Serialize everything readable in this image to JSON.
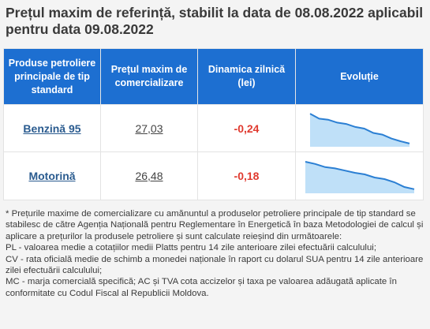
{
  "title": "Prețul maxim de referință, stabilit la data de 08.08.2022 aplicabil pentru data 09.08.2022",
  "table": {
    "headers": [
      "Produse petroliere principale de tip standard",
      "Prețul maxim de comercializare",
      "Dinamica zilnică (lei)",
      "Evoluție"
    ],
    "rows": [
      {
        "product": "Benzină 95",
        "price": "27,03",
        "delta": "-0,24",
        "trend": [
          0.95,
          0.8,
          0.77,
          0.68,
          0.64,
          0.55,
          0.5,
          0.37,
          0.32,
          0.2,
          0.12,
          0.05
        ]
      },
      {
        "product": "Motorină",
        "price": "26,48",
        "delta": "-0,18",
        "trend": [
          0.95,
          0.88,
          0.78,
          0.74,
          0.67,
          0.6,
          0.55,
          0.45,
          0.4,
          0.3,
          0.15,
          0.08
        ]
      }
    ]
  },
  "colors": {
    "header": "#1d6fd1",
    "negative": "#e03a2f",
    "link": "#2a5b8f",
    "spark_line": "#2b7fd3",
    "spark_fill": "#bfe0f8"
  },
  "notes": [
    "* Prețurile maxime de comercializare cu amănuntul a produselor petroliere principale de tip standard se stabilesc de către Agenția Națională pentru Reglementare în Energetică în baza Metodologiei de calcul și aplicare a prețurilor la produsele petroliere și sunt calculate reieșind din următoarele:",
    "PL - valoarea medie a cotațiilor medii Platts pentru 14 zile anterioare zilei efectuării calculului;",
    "CV - rata oficială medie de schimb a monedei naționale în raport cu dolarul SUA pentru 14 zile anterioare zilei efectuării calculului;",
    "MC - marja comercială specifică; AC și TVA cota accizelor și taxa pe valoarea adăugată aplicate în conformitate cu Codul Fiscal al Republicii Moldova."
  ]
}
